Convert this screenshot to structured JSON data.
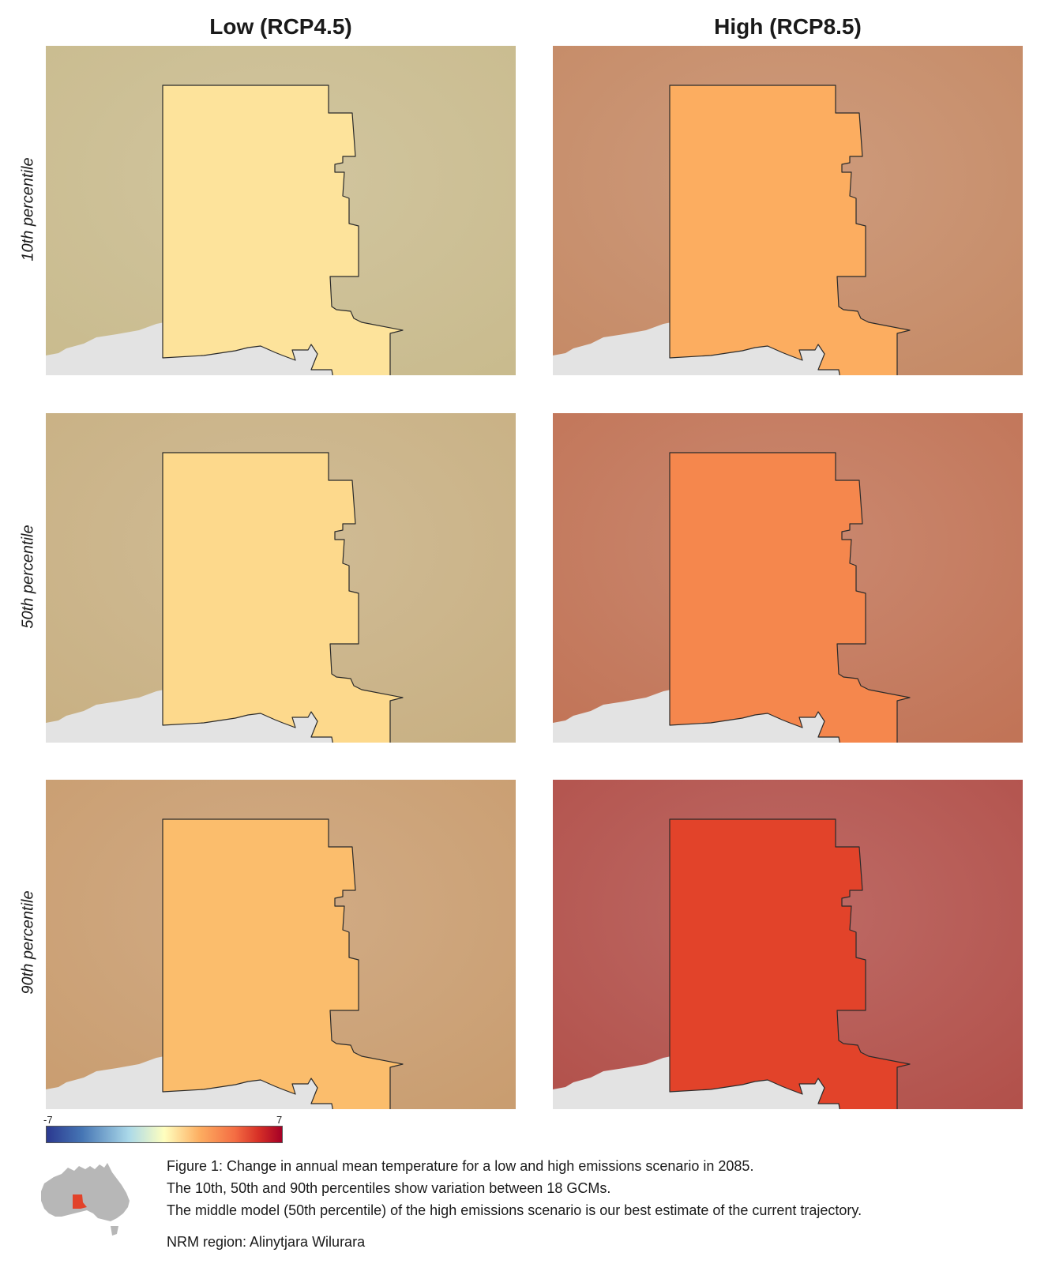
{
  "columns": {
    "low": "Low (RCP4.5)",
    "high": "High (RCP8.5)"
  },
  "rows": {
    "p10": "10th percentile",
    "p50": "50th percentile",
    "p90": "90th percentile"
  },
  "colorbar": {
    "min": "-7",
    "max": "7"
  },
  "caption": {
    "line1": "Figure 1: Change in annual mean temperature for a low and high emissions scenario in 2085.",
    "line2": "The 10th, 50th and 90th percentiles show variation between 18 GCMs.",
    "line3": "The middle model (50th percentile) of the high emissions scenario is our best estimate of the current trajectory.",
    "region": "NRM region: Alinytjara Wilurara"
  },
  "colors": {
    "ocean": "#e3e3e3",
    "inset_land": "#b7b7b7",
    "inset_region": "#e2432a",
    "low_10": {
      "outer": "#c9bb8e",
      "inner": "#fde39b"
    },
    "low_50": {
      "outer": "#c8b083",
      "inner": "#fdd98c"
    },
    "low_90": {
      "outer": "#c99d70",
      "inner": "#fbbd6c"
    },
    "high_10": {
      "outer": "#c58a66",
      "inner": "#fcad60"
    },
    "high_50": {
      "outer": "#c17457",
      "inner": "#f5874d"
    },
    "high_90": {
      "outer": "#b2514b",
      "inner": "#e2432a"
    }
  }
}
